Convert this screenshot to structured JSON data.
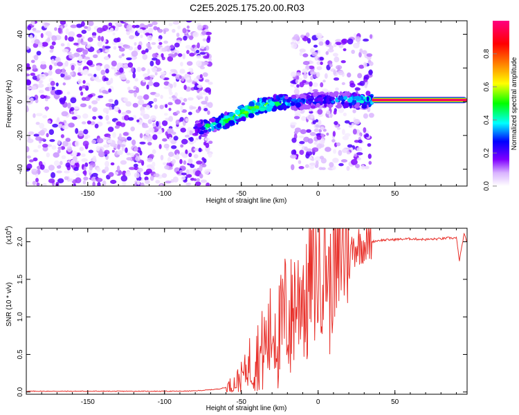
{
  "title": "C2E5.2025.175.20.00.R03",
  "chart_data": [
    {
      "type": "heatmap",
      "xlabel": "Height of straight line (km)",
      "ylabel": "Frequency (Hz)",
      "xlim": [
        -190,
        97
      ],
      "ylim": [
        -50,
        48
      ],
      "x_ticks": [
        -150,
        -100,
        -50,
        0,
        50
      ],
      "y_ticks": [
        -40,
        -20,
        0,
        20,
        40
      ],
      "grid": false,
      "colorbar": {
        "label": "Normalized spectral amplitude",
        "range": [
          0,
          1
        ],
        "ticks": [
          0,
          0.2,
          0.4,
          0.6,
          0.8
        ],
        "tick_labels": [
          "0.0",
          "0.2",
          "0.4",
          "0.6",
          "0.8"
        ],
        "colormap": [
          "#ffffff",
          "#d9b3ff",
          "#8000ff",
          "#0000ff",
          "#00ffff",
          "#00ff00",
          "#ffff00",
          "#ff8000",
          "#ff0000",
          "#ff0080"
        ]
      },
      "regions": [
        {
          "x": [
            -190,
            -70
          ],
          "y": [
            -50,
            48
          ],
          "amplitude": [
            0.0,
            0.15
          ],
          "description": "noise"
        },
        {
          "x": [
            -17,
            35
          ],
          "y": [
            -40,
            40
          ],
          "amplitude": [
            0.0,
            0.15
          ],
          "description": "noise"
        },
        {
          "x": [
            35,
            97
          ],
          "y": [
            1,
            1
          ],
          "amplitude": [
            0.9,
            1.0
          ],
          "description": "carrier"
        }
      ],
      "ridge": {
        "x": [
          -80,
          -70,
          -60,
          -50,
          -40,
          -30,
          -20,
          -10,
          0,
          10,
          20,
          35
        ],
        "y": [
          -16,
          -14,
          -11,
          -7,
          -3,
          -1,
          0,
          0,
          1,
          1,
          1,
          1
        ],
        "amplitude": [
          0.3,
          0.4,
          0.45,
          0.5,
          0.5,
          0.45,
          0.35,
          0.3,
          0.3,
          0.3,
          0.35,
          0.4
        ]
      }
    },
    {
      "type": "line",
      "xlabel": "Height of straight line (km)",
      "ylabel": "SNR (10 * v/v)",
      "y_multiplier": "(x10",
      "y_multiplier_exp": "4",
      "y_multiplier_close": ")",
      "xlim": [
        -190,
        97
      ],
      "ylim": [
        -0.03,
        2.18
      ],
      "x_ticks": [
        -150,
        -100,
        -50,
        0,
        50
      ],
      "y_ticks": [
        0,
        0.5,
        1.0,
        1.5,
        2.0
      ],
      "y_tick_labels": [
        "0.0",
        "0.5",
        "1.0",
        "1.5",
        "2.0"
      ],
      "grid": false,
      "series": [
        {
          "color": "#e8302a",
          "x": [
            -190,
            -170,
            -150,
            -130,
            -110,
            -90,
            -80,
            -70,
            -65,
            -60,
            -55,
            -50,
            -45,
            -42,
            -40,
            -38,
            -35,
            -32,
            -30,
            -28,
            -25,
            -22,
            -20,
            -18,
            -15,
            -13,
            -10,
            -8,
            -5,
            -3,
            0,
            3,
            5,
            8,
            10,
            12,
            15,
            17,
            18,
            20,
            22,
            25,
            30,
            35,
            40,
            50,
            60,
            70,
            80,
            85,
            90,
            92,
            95,
            97
          ],
          "y": [
            0.01,
            0.01,
            0.01,
            0.01,
            0.01,
            0.01,
            0.015,
            0.03,
            0.04,
            0.06,
            0.1,
            0.2,
            0.35,
            0.45,
            0.5,
            0.45,
            0.6,
            0.7,
            0.8,
            0.9,
            0.7,
            1.0,
            1.1,
            0.9,
            1.3,
            1.2,
            1.5,
            1.0,
            1.6,
            1.5,
            1.55,
            1.7,
            1.8,
            1.3,
            1.9,
            1.4,
            1.95,
            1.75,
            2.17,
            1.7,
            1.9,
            1.95,
            1.98,
            2.0,
            2.02,
            2.03,
            2.04,
            2.03,
            2.04,
            2.05,
            2.05,
            1.75,
            2.1,
            2.0
          ]
        }
      ]
    }
  ]
}
